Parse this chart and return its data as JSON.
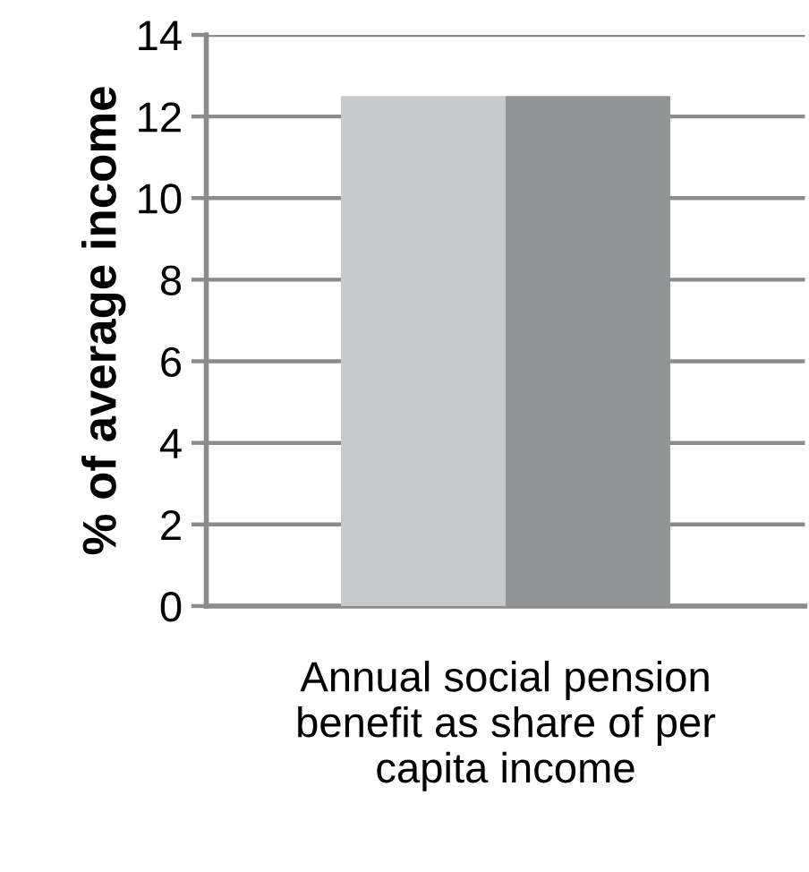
{
  "chart_data": {
    "type": "bar",
    "ylabel": "% of average income",
    "categories": [
      "Annual social pension\nbenefit as share of per\ncapita income"
    ],
    "series": [
      {
        "color": "#c8c9cb",
        "values": [
          12.5
        ]
      },
      {
        "color": "#939496",
        "values": [
          12.5
        ]
      }
    ],
    "ylim": [
      0,
      14
    ],
    "yticks": [
      0,
      2,
      4,
      6,
      8,
      10,
      12,
      14
    ],
    "grid": "y",
    "legend": false
  }
}
